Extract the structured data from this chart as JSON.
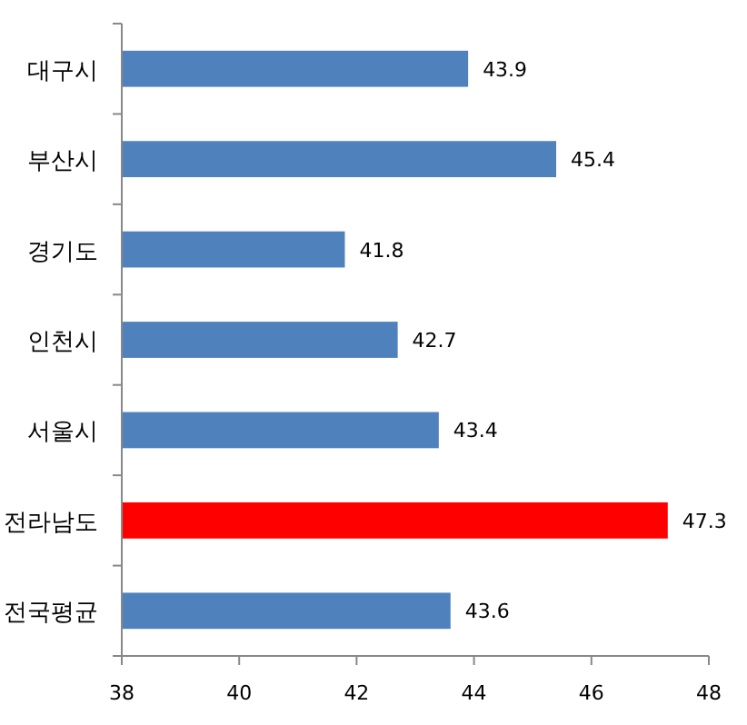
{
  "chart_data": {
    "type": "bar",
    "orientation": "horizontal",
    "categories": [
      "대구시",
      "부산시",
      "경기도",
      "인천시",
      "서울시",
      "전라남도",
      "전국평균"
    ],
    "values": [
      43.9,
      45.4,
      41.8,
      42.7,
      43.4,
      47.3,
      43.6
    ],
    "colors": [
      "#4f81bd",
      "#4f81bd",
      "#4f81bd",
      "#4f81bd",
      "#4f81bd",
      "#ff0000",
      "#4f81bd"
    ],
    "xlim": [
      38,
      48
    ],
    "xticks": [
      38,
      40,
      42,
      44,
      46,
      48
    ],
    "data_labels": true
  }
}
